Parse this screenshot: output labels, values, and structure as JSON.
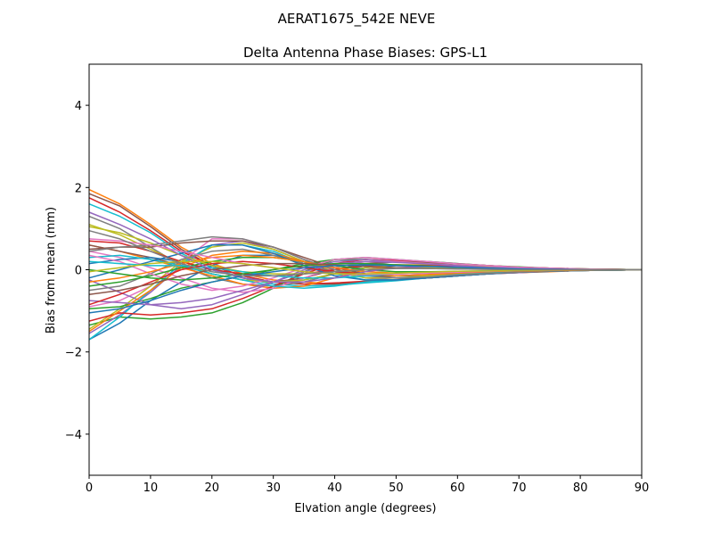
{
  "chart_data": {
    "type": "line",
    "suptitle": "AERAT1675_542E  NEVE",
    "title": "Delta Antenna Phase Biases: GPS-L1",
    "xlabel": "Elvation angle (degrees)",
    "ylabel": "Bias from mean (mm)",
    "xlim": [
      0,
      90
    ],
    "ylim": [
      -5,
      5
    ],
    "xticks": [
      0,
      10,
      20,
      30,
      40,
      50,
      60,
      70,
      80,
      90
    ],
    "yticks": [
      -4,
      -2,
      0,
      2,
      4
    ],
    "ytick_labels": [
      "−4",
      "−2",
      "0",
      "2",
      "4"
    ],
    "grid": false,
    "legend": "none",
    "x": [
      0,
      5,
      10,
      15,
      20,
      25,
      30,
      35,
      40,
      45,
      50,
      55,
      60,
      65,
      70,
      75,
      80,
      85,
      90
    ],
    "series": [
      {
        "color": "#ff7f0e",
        "values": [
          1.95,
          1.6,
          1.1,
          0.55,
          0.15,
          -0.1,
          -0.25,
          -0.3,
          -0.35,
          -0.3,
          -0.25,
          -0.2,
          -0.15,
          -0.1,
          -0.07,
          -0.05,
          -0.02,
          -0.01,
          0
        ]
      },
      {
        "color": "#8c564b",
        "values": [
          1.85,
          1.55,
          1.05,
          0.5,
          0.1,
          -0.15,
          -0.3,
          -0.35,
          -0.35,
          -0.3,
          -0.25,
          -0.2,
          -0.15,
          -0.1,
          -0.07,
          -0.04,
          -0.02,
          -0.01,
          0
        ]
      },
      {
        "color": "#17becf",
        "values": [
          1.6,
          1.3,
          0.9,
          0.4,
          0.05,
          -0.2,
          -0.35,
          -0.4,
          -0.38,
          -0.32,
          -0.27,
          -0.2,
          -0.15,
          -0.1,
          -0.06,
          -0.04,
          -0.02,
          -0.01,
          0
        ]
      },
      {
        "color": "#d62728",
        "values": [
          1.75,
          1.4,
          0.95,
          0.45,
          0.1,
          -0.15,
          -0.3,
          -0.35,
          -0.32,
          -0.28,
          -0.24,
          -0.2,
          -0.14,
          -0.09,
          -0.06,
          -0.04,
          -0.02,
          -0.01,
          0
        ]
      },
      {
        "color": "#2ca02c",
        "values": [
          -1.35,
          -1.15,
          -1.2,
          -1.15,
          -1.05,
          -0.8,
          -0.45,
          -0.05,
          0.25,
          0.3,
          0.25,
          0.2,
          0.15,
          0.1,
          0.07,
          0.04,
          0.02,
          0.01,
          0
        ]
      },
      {
        "color": "#1f77b4",
        "values": [
          -1.7,
          -1.3,
          -0.75,
          -0.3,
          0.1,
          0.35,
          0.35,
          0.2,
          0.05,
          -0.1,
          -0.15,
          -0.15,
          -0.12,
          -0.08,
          -0.05,
          -0.03,
          -0.02,
          -0.01,
          0
        ]
      },
      {
        "color": "#9467bd",
        "values": [
          -1.55,
          -1.1,
          -0.55,
          0.1,
          0.6,
          0.7,
          0.5,
          0.2,
          -0.05,
          -0.2,
          -0.25,
          -0.2,
          -0.15,
          -0.1,
          -0.07,
          -0.04,
          -0.02,
          -0.01,
          0
        ]
      },
      {
        "color": "#e377c2",
        "values": [
          -0.9,
          -0.75,
          -0.4,
          0.2,
          0.75,
          0.75,
          0.55,
          0.25,
          0.0,
          -0.15,
          -0.2,
          -0.18,
          -0.14,
          -0.09,
          -0.06,
          -0.04,
          -0.02,
          -0.01,
          0
        ]
      },
      {
        "color": "#bcbd22",
        "values": [
          -1.45,
          -0.95,
          -0.4,
          0.2,
          0.55,
          0.65,
          0.5,
          0.2,
          -0.05,
          -0.2,
          -0.2,
          -0.15,
          -0.12,
          -0.08,
          -0.05,
          -0.03,
          -0.02,
          -0.01,
          0
        ]
      },
      {
        "color": "#17becf",
        "values": [
          -1.7,
          -1.15,
          -0.5,
          0.15,
          0.6,
          0.6,
          0.45,
          0.15,
          -0.1,
          -0.25,
          -0.25,
          -0.2,
          -0.15,
          -0.1,
          -0.06,
          -0.04,
          -0.02,
          -0.01,
          0
        ]
      },
      {
        "color": "#7f7f7f",
        "values": [
          1.3,
          1.0,
          0.55,
          0.1,
          -0.2,
          -0.35,
          -0.4,
          -0.3,
          -0.1,
          0.1,
          0.2,
          0.2,
          0.15,
          0.1,
          0.06,
          0.04,
          0.02,
          0.01,
          0
        ]
      },
      {
        "color": "#ff7f0e",
        "values": [
          0.6,
          0.45,
          0.25,
          0.05,
          -0.15,
          -0.35,
          -0.45,
          -0.4,
          -0.2,
          0.0,
          0.1,
          0.1,
          0.08,
          0.05,
          0.03,
          0.02,
          0.01,
          0.0,
          0
        ]
      },
      {
        "color": "#2ca02c",
        "values": [
          -0.95,
          -0.9,
          -0.7,
          -0.45,
          -0.3,
          -0.15,
          0.0,
          0.15,
          0.25,
          0.25,
          0.2,
          0.15,
          0.1,
          0.07,
          0.05,
          0.03,
          0.02,
          0.01,
          0
        ]
      },
      {
        "color": "#d62728",
        "values": [
          -1.25,
          -1.05,
          -1.1,
          -1.05,
          -0.95,
          -0.7,
          -0.4,
          -0.1,
          0.15,
          0.25,
          0.22,
          0.18,
          0.14,
          0.1,
          0.06,
          0.04,
          0.02,
          0.01,
          0
        ]
      },
      {
        "color": "#9467bd",
        "values": [
          -0.25,
          -0.55,
          -0.85,
          -0.95,
          -0.85,
          -0.6,
          -0.3,
          0.0,
          0.2,
          0.25,
          0.2,
          0.15,
          0.1,
          0.07,
          0.04,
          0.02,
          0.01,
          0.0,
          0
        ]
      },
      {
        "color": "#8c564b",
        "values": [
          0.6,
          0.45,
          0.3,
          0.1,
          -0.1,
          -0.25,
          -0.3,
          -0.2,
          0.0,
          0.15,
          0.2,
          0.18,
          0.14,
          0.1,
          0.06,
          0.04,
          0.02,
          0.01,
          0
        ]
      },
      {
        "color": "#e377c2",
        "values": [
          0.45,
          0.3,
          0.05,
          -0.2,
          -0.45,
          -0.55,
          -0.45,
          -0.2,
          0.05,
          0.2,
          0.2,
          0.15,
          0.1,
          0.07,
          0.04,
          0.02,
          0.01,
          0.0,
          0
        ]
      },
      {
        "color": "#1f77b4",
        "values": [
          0.15,
          0.25,
          0.3,
          0.2,
          0.0,
          -0.2,
          -0.3,
          -0.25,
          -0.1,
          0.05,
          0.1,
          0.1,
          0.08,
          0.05,
          0.03,
          0.02,
          0.01,
          0.0,
          0
        ]
      },
      {
        "color": "#bcbd22",
        "values": [
          1.1,
          0.85,
          0.5,
          0.15,
          -0.1,
          -0.25,
          -0.3,
          -0.25,
          -0.1,
          0.05,
          0.12,
          0.12,
          0.1,
          0.07,
          0.04,
          0.02,
          0.01,
          0.0,
          0
        ]
      },
      {
        "color": "#7f7f7f",
        "values": [
          -0.5,
          -0.4,
          -0.1,
          0.25,
          0.45,
          0.5,
          0.35,
          0.15,
          -0.05,
          -0.15,
          -0.15,
          -0.12,
          -0.09,
          -0.06,
          -0.04,
          -0.02,
          -0.01,
          0.0,
          0
        ]
      },
      {
        "color": "#ff7f0e",
        "values": [
          -1.5,
          -1.0,
          -0.5,
          0.05,
          0.35,
          0.45,
          0.4,
          0.2,
          0.0,
          -0.12,
          -0.15,
          -0.12,
          -0.09,
          -0.06,
          -0.04,
          -0.02,
          -0.01,
          0.0,
          0
        ]
      },
      {
        "color": "#17becf",
        "values": [
          0.3,
          0.35,
          0.25,
          0.1,
          -0.1,
          -0.25,
          -0.4,
          -0.45,
          -0.4,
          -0.3,
          -0.25,
          -0.18,
          -0.12,
          -0.08,
          -0.05,
          -0.03,
          -0.02,
          -0.01,
          0
        ]
      },
      {
        "color": "#d62728",
        "values": [
          0.7,
          0.65,
          0.45,
          0.2,
          0.0,
          -0.1,
          -0.15,
          -0.1,
          0.0,
          0.1,
          0.12,
          0.1,
          0.08,
          0.05,
          0.03,
          0.02,
          0.01,
          0.0,
          0
        ]
      },
      {
        "color": "#2ca02c",
        "values": [
          -0.4,
          -0.3,
          -0.15,
          0.05,
          0.2,
          0.3,
          0.3,
          0.2,
          0.1,
          0.0,
          -0.05,
          -0.05,
          -0.04,
          -0.03,
          -0.02,
          -0.01,
          0.0,
          0.0,
          0
        ]
      },
      {
        "color": "#9467bd",
        "values": [
          -0.75,
          -0.8,
          -0.85,
          -0.8,
          -0.7,
          -0.5,
          -0.3,
          -0.05,
          0.15,
          0.2,
          0.18,
          0.14,
          0.1,
          0.06,
          0.04,
          0.02,
          0.01,
          0.0,
          0
        ]
      },
      {
        "color": "#8c564b",
        "values": [
          0.5,
          0.55,
          0.55,
          0.65,
          0.7,
          0.7,
          0.55,
          0.3,
          0.05,
          -0.1,
          -0.2,
          -0.2,
          -0.15,
          -0.1,
          -0.06,
          -0.04,
          -0.02,
          -0.01,
          0
        ]
      },
      {
        "color": "#e377c2",
        "values": [
          0.35,
          0.2,
          -0.1,
          -0.35,
          -0.5,
          -0.4,
          -0.2,
          0.05,
          0.25,
          0.3,
          0.25,
          0.2,
          0.14,
          0.1,
          0.06,
          0.04,
          0.02,
          0.01,
          0
        ]
      },
      {
        "color": "#1f77b4",
        "values": [
          -0.2,
          0.0,
          0.2,
          0.4,
          0.6,
          0.6,
          0.4,
          0.1,
          -0.15,
          -0.25,
          -0.25,
          -0.2,
          -0.15,
          -0.1,
          -0.06,
          -0.04,
          -0.02,
          -0.01,
          0
        ]
      },
      {
        "color": "#bcbd22",
        "values": [
          1.05,
          0.9,
          0.65,
          0.35,
          0.1,
          -0.05,
          -0.1,
          -0.1,
          -0.05,
          0.0,
          0.05,
          0.05,
          0.04,
          0.03,
          0.02,
          0.01,
          0.0,
          0.0,
          0
        ]
      },
      {
        "color": "#7f7f7f",
        "values": [
          0.45,
          0.55,
          0.6,
          0.7,
          0.8,
          0.75,
          0.55,
          0.25,
          0.0,
          -0.15,
          -0.2,
          -0.18,
          -0.13,
          -0.09,
          -0.06,
          -0.03,
          -0.02,
          -0.01,
          0
        ]
      },
      {
        "color": "#ff7f0e",
        "values": [
          -0.3,
          -0.2,
          -0.05,
          0.15,
          0.3,
          0.35,
          0.3,
          0.2,
          0.05,
          -0.05,
          -0.08,
          -0.08,
          -0.06,
          -0.04,
          -0.03,
          -0.02,
          -0.01,
          0.0,
          0
        ]
      },
      {
        "color": "#17becf",
        "values": [
          0.2,
          0.15,
          0.1,
          0.1,
          0.05,
          -0.05,
          -0.15,
          -0.2,
          -0.2,
          -0.15,
          -0.1,
          -0.07,
          -0.05,
          -0.03,
          -0.02,
          -0.01,
          0.0,
          0.0,
          0
        ]
      },
      {
        "color": "#d62728",
        "values": [
          -0.85,
          -0.6,
          -0.3,
          0.0,
          0.15,
          0.2,
          0.15,
          0.05,
          -0.05,
          -0.1,
          -0.1,
          -0.08,
          -0.06,
          -0.04,
          -0.02,
          -0.01,
          0.0,
          0.0,
          0
        ]
      },
      {
        "color": "#2ca02c",
        "values": [
          0.0,
          -0.1,
          -0.2,
          -0.25,
          -0.2,
          -0.1,
          0.0,
          0.1,
          0.15,
          0.15,
          0.12,
          0.09,
          0.06,
          0.04,
          0.02,
          0.01,
          0.0,
          0.0,
          0
        ]
      },
      {
        "color": "#9467bd",
        "values": [
          1.4,
          1.1,
          0.75,
          0.35,
          0.0,
          -0.2,
          -0.3,
          -0.3,
          -0.2,
          -0.05,
          0.05,
          0.08,
          0.07,
          0.05,
          0.03,
          0.02,
          0.01,
          0.0,
          0
        ]
      },
      {
        "color": "#8c564b",
        "values": [
          -0.6,
          -0.5,
          -0.35,
          -0.15,
          0.0,
          0.1,
          0.15,
          0.15,
          0.12,
          0.08,
          0.05,
          0.03,
          0.02,
          0.01,
          0.0,
          0.0,
          0.0,
          0.0,
          0
        ]
      },
      {
        "color": "#e377c2",
        "values": [
          0.75,
          0.7,
          0.6,
          0.45,
          0.3,
          0.15,
          0.05,
          -0.05,
          -0.1,
          -0.12,
          -0.1,
          -0.08,
          -0.06,
          -0.04,
          -0.02,
          -0.01,
          0.0,
          0.0,
          0
        ]
      },
      {
        "color": "#1f77b4",
        "values": [
          -1.05,
          -0.95,
          -0.75,
          -0.5,
          -0.3,
          -0.15,
          -0.05,
          0.05,
          0.1,
          0.12,
          0.1,
          0.08,
          0.06,
          0.04,
          0.02,
          0.01,
          0.0,
          0.0,
          0
        ]
      },
      {
        "color": "#bcbd22",
        "values": [
          -0.05,
          0.05,
          0.15,
          0.2,
          0.2,
          0.15,
          0.05,
          -0.05,
          -0.1,
          -0.1,
          -0.08,
          -0.06,
          -0.04,
          -0.03,
          -0.02,
          -0.01,
          0.0,
          0.0,
          0
        ]
      },
      {
        "color": "#7f7f7f",
        "values": [
          0.95,
          0.75,
          0.45,
          0.15,
          -0.05,
          -0.15,
          -0.15,
          -0.1,
          -0.05,
          0.0,
          0.03,
          0.03,
          0.02,
          0.01,
          0.0,
          0.0,
          0.0,
          0.0,
          0
        ]
      }
    ]
  }
}
